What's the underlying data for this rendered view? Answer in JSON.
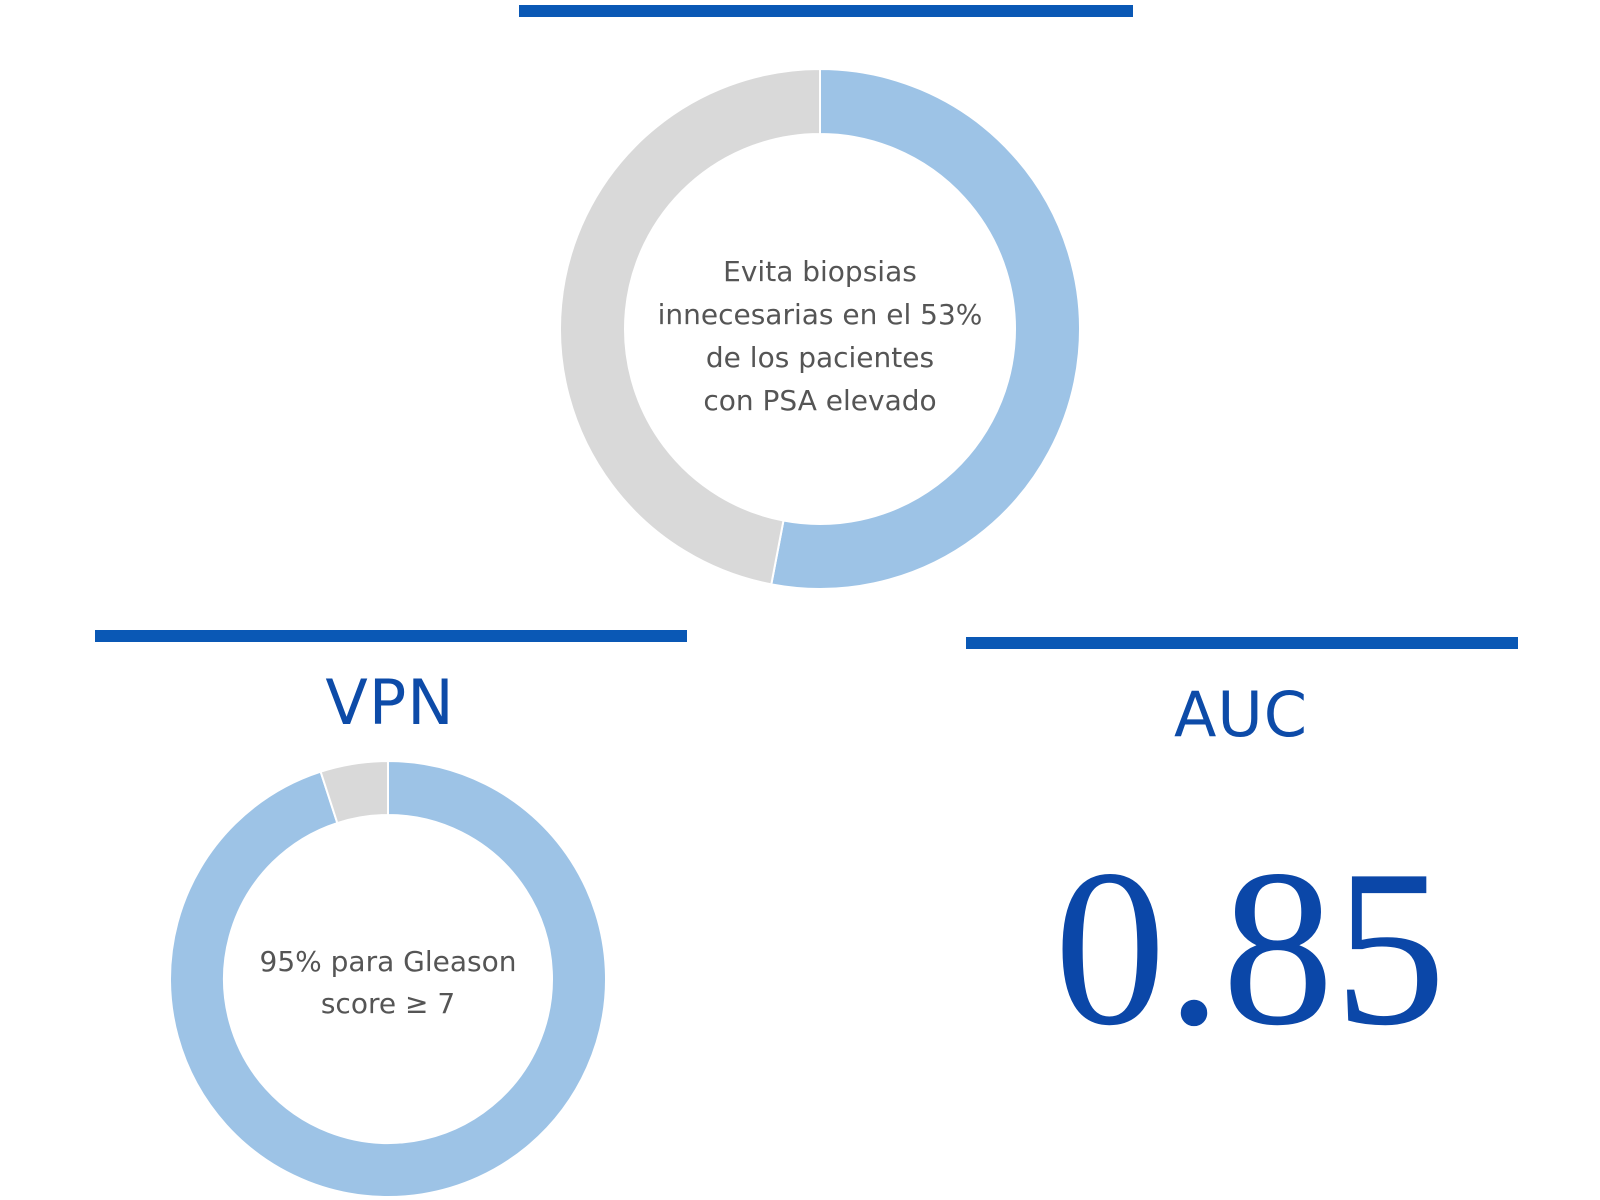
{
  "chart_data": [
    {
      "type": "pie",
      "style": "donut",
      "title": "",
      "center_text": [
        "Evita biopsias",
        "innecesarias en el 53%",
        "de los pacientes",
        "con PSA elevado"
      ],
      "values": [
        53,
        47
      ],
      "colors": [
        "#9dc3e6",
        "#d9d9d9"
      ]
    },
    {
      "type": "pie",
      "style": "donut",
      "title": "VPN",
      "center_text": [
        "95% para Gleason",
        "score ≥ 7"
      ],
      "values": [
        95,
        5
      ],
      "colors": [
        "#9dc3e6",
        "#d9d9d9"
      ]
    }
  ],
  "metric": {
    "label": "AUC",
    "value": "0.85"
  },
  "colors": {
    "accent": "#0a58b5",
    "text_blue": "#0d4ba8",
    "ring_blue": "#9dc3e6",
    "ring_grey": "#d9d9d9",
    "center_text": "#555555"
  }
}
